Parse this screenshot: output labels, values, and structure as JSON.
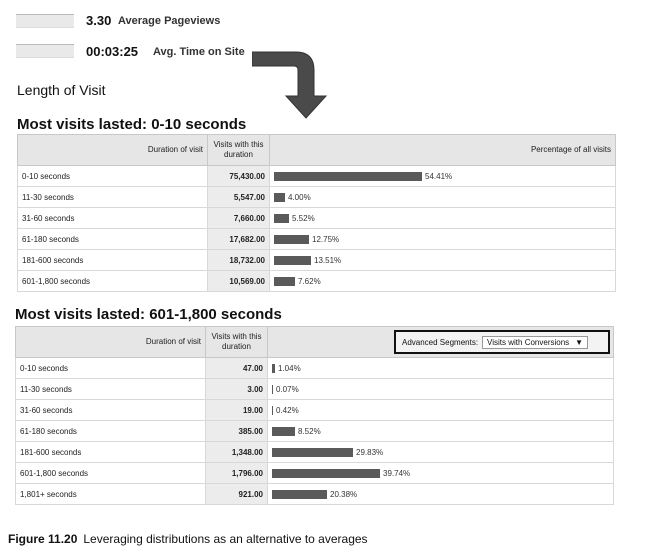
{
  "metrics": [
    {
      "value": "3.30",
      "label": "Average Pageviews"
    },
    {
      "value": "00:03:25",
      "label": "Avg. Time on Site"
    }
  ],
  "section_title": "Length of Visit",
  "table1": {
    "headline": "Most visits lasted: 0-10 seconds",
    "headers": {
      "duration": "Duration of visit",
      "visits": "Visits with this duration",
      "percentage": "Percentage of all visits"
    },
    "rows": [
      {
        "duration": "0-10 seconds",
        "visits": "75,430.00",
        "pct": "54.41%",
        "pct_value": 54.41
      },
      {
        "duration": "11-30 seconds",
        "visits": "5,547.00",
        "pct": "4.00%",
        "pct_value": 4.0
      },
      {
        "duration": "31-60 seconds",
        "visits": "7,660.00",
        "pct": "5.52%",
        "pct_value": 5.52
      },
      {
        "duration": "61-180 seconds",
        "visits": "17,682.00",
        "pct": "12.75%",
        "pct_value": 12.75
      },
      {
        "duration": "181-600 seconds",
        "visits": "18,732.00",
        "pct": "13.51%",
        "pct_value": 13.51
      },
      {
        "duration": "601-1,800 seconds",
        "visits": "10,569.00",
        "pct": "7.62%",
        "pct_value": 7.62
      }
    ]
  },
  "table2": {
    "headline": "Most visits lasted: 601-1,800 seconds",
    "headers": {
      "duration": "Duration of visit",
      "visits": "Visits with this duration"
    },
    "segment_label": "Advanced Segments:",
    "segment_value": "Visits with Conversions",
    "rows": [
      {
        "duration": "0-10 seconds",
        "visits": "47.00",
        "pct": "1.04%",
        "pct_value": 1.04
      },
      {
        "duration": "11-30 seconds",
        "visits": "3.00",
        "pct": "0.07%",
        "pct_value": 0.07
      },
      {
        "duration": "31-60 seconds",
        "visits": "19.00",
        "pct": "0.42%",
        "pct_value": 0.42
      },
      {
        "duration": "61-180 seconds",
        "visits": "385.00",
        "pct": "8.52%",
        "pct_value": 8.52
      },
      {
        "duration": "181-600 seconds",
        "visits": "1,348.00",
        "pct": "29.83%",
        "pct_value": 29.83
      },
      {
        "duration": "601-1,800 seconds",
        "visits": "1,796.00",
        "pct": "39.74%",
        "pct_value": 39.74
      },
      {
        "duration": "1,801+ seconds",
        "visits": "921.00",
        "pct": "20.38%",
        "pct_value": 20.38
      }
    ]
  },
  "caption": {
    "figure": "Figure 11.20",
    "text": "Leveraging distributions as an alternative to averages"
  },
  "colors": {
    "bar": "#5a5a5a",
    "header_bg": "#e6e6e6"
  }
}
